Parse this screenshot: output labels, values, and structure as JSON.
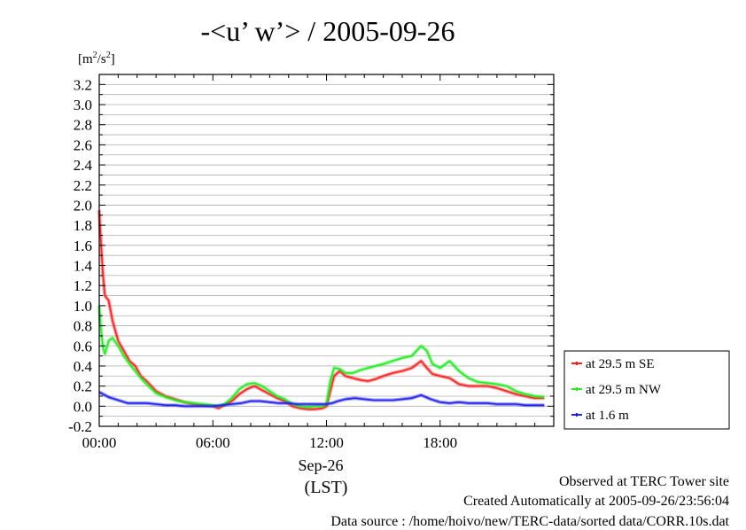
{
  "chart_data": {
    "type": "line",
    "title": "-<u’ w’> / 2005-09-26",
    "yunit": "[m2/s2]",
    "yunit_parts": {
      "open": "[m",
      "sup1": "2",
      "mid": "/s",
      "sup2": "2",
      "close": "]"
    },
    "ylim": [
      -0.2,
      3.3
    ],
    "y_ticks": [
      -0.2,
      0.0,
      0.2,
      0.4,
      0.6,
      0.8,
      1.0,
      1.2,
      1.4,
      1.6,
      1.8,
      2.0,
      2.2,
      2.4,
      2.6,
      2.8,
      3.0,
      3.2
    ],
    "y_tick_labels": [
      "-0.2",
      "0.0",
      "0.2",
      "0.4",
      "0.6",
      "0.8",
      "1.0",
      "1.2",
      "1.4",
      "1.6",
      "1.8",
      "2.0",
      "2.2",
      "2.4",
      "2.6",
      "2.8",
      "3.0",
      "3.2"
    ],
    "xlim": [
      0,
      24
    ],
    "x_ticks": [
      0,
      6,
      12,
      18
    ],
    "x_tick_labels": [
      "00:00",
      "06:00",
      "12:00",
      "18:00"
    ],
    "x_date_label": "Sep-26",
    "xlabel": "(LST)",
    "grid": true,
    "legend_position": "right",
    "series": [
      {
        "name": "at 29.5 m SE",
        "color": "#ff2020",
        "x": [
          0.0,
          0.1,
          0.2,
          0.3,
          0.5,
          0.7,
          1.0,
          1.3,
          1.6,
          1.9,
          2.2,
          2.5,
          3.0,
          3.5,
          4.0,
          4.5,
          5.0,
          5.5,
          6.0,
          6.3,
          6.6,
          7.0,
          7.4,
          7.8,
          8.2,
          8.6,
          9.0,
          9.4,
          9.8,
          10.2,
          10.6,
          11.0,
          11.4,
          11.8,
          12.0,
          12.2,
          12.4,
          12.7,
          13.0,
          13.4,
          13.8,
          14.2,
          14.6,
          15.0,
          15.5,
          16.0,
          16.5,
          17.0,
          17.3,
          17.6,
          18.0,
          18.5,
          19.0,
          19.5,
          20.0,
          20.5,
          21.0,
          21.5,
          22.0,
          22.5,
          23.0,
          23.5
        ],
        "y": [
          1.95,
          1.6,
          1.3,
          1.1,
          1.05,
          0.85,
          0.65,
          0.55,
          0.45,
          0.4,
          0.3,
          0.25,
          0.15,
          0.1,
          0.07,
          0.04,
          0.02,
          0.01,
          0.0,
          -0.02,
          0.01,
          0.05,
          0.12,
          0.17,
          0.2,
          0.16,
          0.12,
          0.08,
          0.05,
          0.0,
          -0.02,
          -0.03,
          -0.03,
          -0.02,
          0.0,
          0.15,
          0.3,
          0.35,
          0.3,
          0.28,
          0.26,
          0.25,
          0.27,
          0.3,
          0.33,
          0.35,
          0.38,
          0.45,
          0.38,
          0.32,
          0.3,
          0.28,
          0.22,
          0.2,
          0.2,
          0.2,
          0.18,
          0.15,
          0.12,
          0.1,
          0.08,
          0.08
        ]
      },
      {
        "name": "at 29.5 m NW",
        "color": "#22ee22",
        "x": [
          0.0,
          0.1,
          0.2,
          0.3,
          0.5,
          0.7,
          1.0,
          1.3,
          1.6,
          1.9,
          2.2,
          2.5,
          3.0,
          3.5,
          4.0,
          4.5,
          5.0,
          5.5,
          6.0,
          6.3,
          6.6,
          7.0,
          7.4,
          7.8,
          8.2,
          8.6,
          9.0,
          9.4,
          9.8,
          10.2,
          10.6,
          11.0,
          11.4,
          11.8,
          12.0,
          12.2,
          12.4,
          12.7,
          13.0,
          13.4,
          13.8,
          14.2,
          14.6,
          15.0,
          15.5,
          16.0,
          16.5,
          17.0,
          17.3,
          17.6,
          18.0,
          18.5,
          19.0,
          19.5,
          20.0,
          20.5,
          21.0,
          21.5,
          22.0,
          22.5,
          23.0,
          23.5
        ],
        "y": [
          1.0,
          0.75,
          0.58,
          0.52,
          0.65,
          0.68,
          0.6,
          0.5,
          0.42,
          0.35,
          0.28,
          0.22,
          0.13,
          0.09,
          0.06,
          0.04,
          0.03,
          0.02,
          0.01,
          0.0,
          0.02,
          0.08,
          0.17,
          0.22,
          0.23,
          0.2,
          0.15,
          0.1,
          0.07,
          0.02,
          0.0,
          -0.01,
          0.0,
          0.0,
          0.02,
          0.25,
          0.38,
          0.37,
          0.33,
          0.33,
          0.36,
          0.38,
          0.4,
          0.42,
          0.45,
          0.48,
          0.5,
          0.6,
          0.55,
          0.42,
          0.38,
          0.45,
          0.35,
          0.28,
          0.24,
          0.23,
          0.22,
          0.2,
          0.15,
          0.12,
          0.1,
          0.09
        ]
      },
      {
        "name": "at 1.6 m",
        "color": "#2222ee",
        "x": [
          0.0,
          0.2,
          0.5,
          1.0,
          1.5,
          2.0,
          2.5,
          3.0,
          3.5,
          4.0,
          4.5,
          5.0,
          5.5,
          6.0,
          6.5,
          7.0,
          7.5,
          8.0,
          8.5,
          9.0,
          9.5,
          10.0,
          10.5,
          11.0,
          11.5,
          12.0,
          12.3,
          12.6,
          13.0,
          13.5,
          14.0,
          14.5,
          15.0,
          15.5,
          16.0,
          16.5,
          17.0,
          17.5,
          18.0,
          18.5,
          19.0,
          19.5,
          20.0,
          20.5,
          21.0,
          21.5,
          22.0,
          22.5,
          23.0,
          23.5
        ],
        "y": [
          0.14,
          0.12,
          0.09,
          0.06,
          0.03,
          0.03,
          0.03,
          0.02,
          0.01,
          0.01,
          0.0,
          0.0,
          0.0,
          0.0,
          0.01,
          0.02,
          0.03,
          0.05,
          0.05,
          0.04,
          0.03,
          0.03,
          0.02,
          0.02,
          0.02,
          0.02,
          0.03,
          0.05,
          0.07,
          0.08,
          0.07,
          0.06,
          0.06,
          0.06,
          0.07,
          0.08,
          0.11,
          0.07,
          0.04,
          0.03,
          0.04,
          0.03,
          0.03,
          0.03,
          0.02,
          0.02,
          0.02,
          0.01,
          0.01,
          0.01
        ]
      }
    ]
  },
  "footer": {
    "line1": "Observed at TERC Tower site",
    "line2": "Created Automatically at 2005-09-26/23:56:04",
    "line3": "Data source : /home/hoivo/new/TERC-data/sorted  data/CORR.10s.dat"
  }
}
